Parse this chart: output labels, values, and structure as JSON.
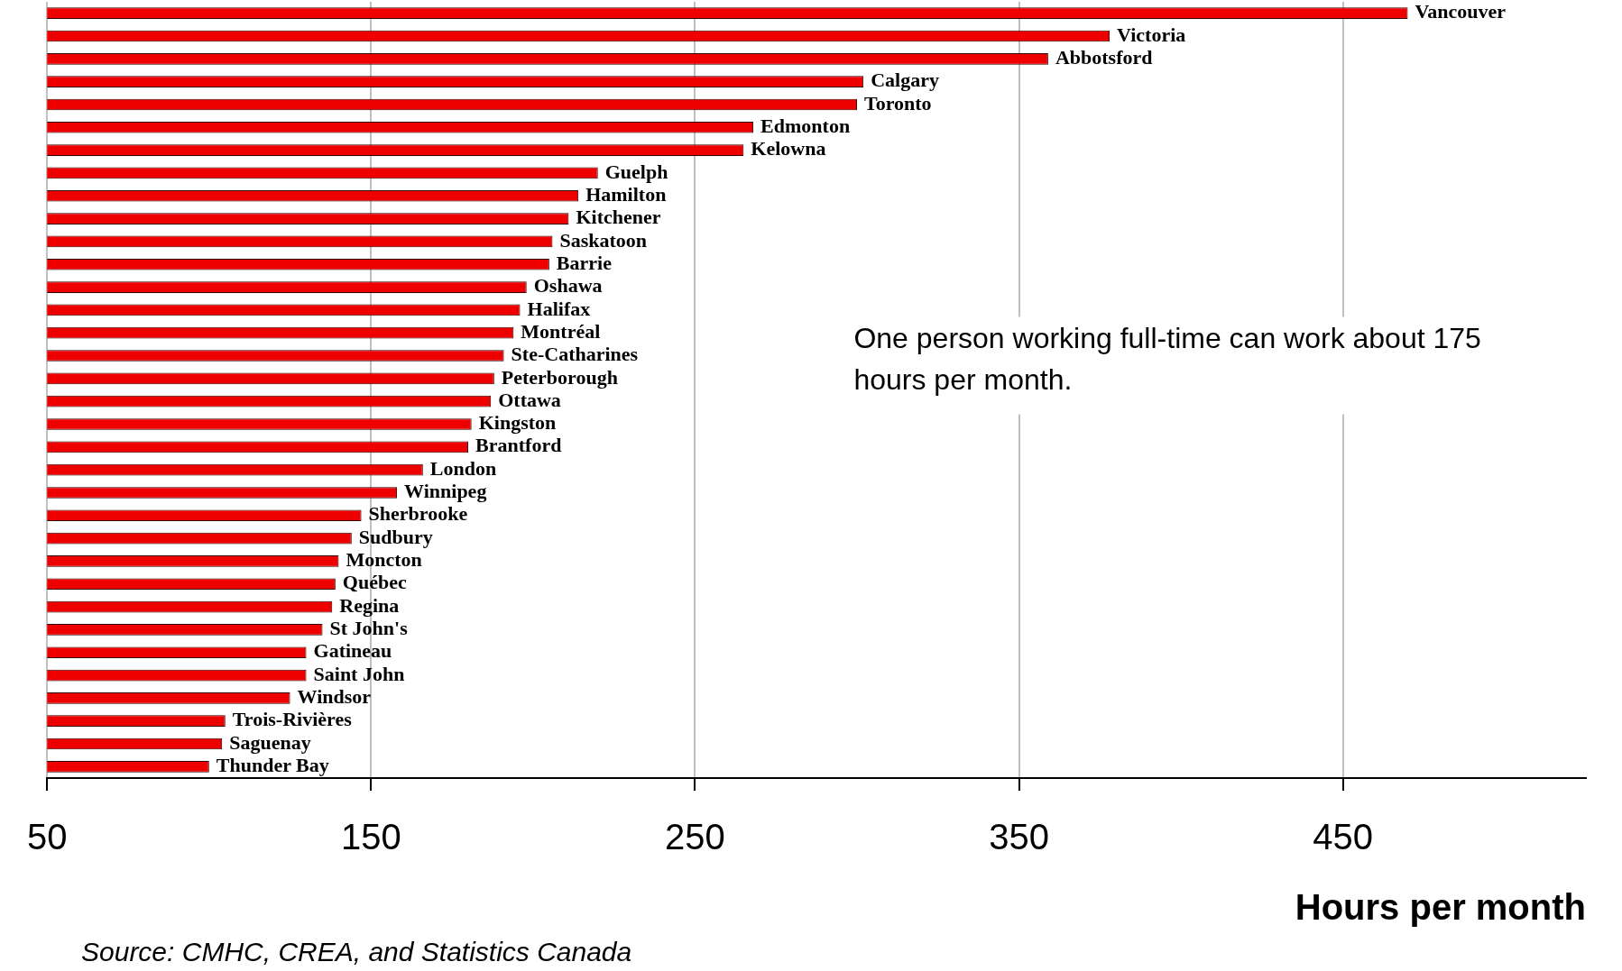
{
  "chart_data": {
    "type": "bar",
    "orientation": "horizontal",
    "categories": [
      "Vancouver",
      "Victoria",
      "Abbotsford",
      "Calgary",
      "Toronto",
      "Edmonton",
      "Kelowna",
      "Guelph",
      "Hamilton",
      "Kitchener",
      "Saskatoon",
      "Barrie",
      "Oshawa",
      "Halifax",
      "Montréal",
      "Ste-Catharines",
      "Peterborough",
      "Ottawa",
      "Kingston",
      "Brantford",
      "London",
      "Winnipeg",
      "Sherbrooke",
      "Sudbury",
      "Moncton",
      "Québec",
      "Regina",
      "St John's",
      "Gatineau",
      "Saint John",
      "Windsor",
      "Trois-Rivières",
      "Saguenay",
      "Thunder Bay"
    ],
    "values": [
      470,
      378,
      359,
      302,
      300,
      268,
      265,
      220,
      214,
      211,
      206,
      205,
      198,
      196,
      194,
      191,
      188,
      187,
      181,
      180,
      166,
      158,
      147,
      144,
      140,
      139,
      138,
      135,
      130,
      130,
      125,
      105,
      104,
      100
    ],
    "color": "#ee0000",
    "xlim": [
      50,
      525
    ],
    "xticks": [
      50,
      150,
      250,
      350,
      450
    ],
    "xlabel": "Hours per month",
    "grid": "x",
    "legend": false,
    "annotations": [
      "One person working full-time can work about 175 hours per month.",
      "Source: CMHC, CREA, and Statistics Canada"
    ]
  }
}
